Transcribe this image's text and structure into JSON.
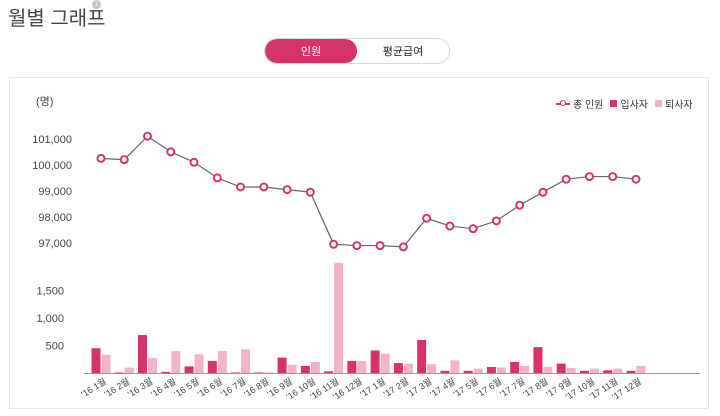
{
  "header": {
    "title": "월별 그래프",
    "info_icon": "info-icon"
  },
  "tabs": [
    {
      "label": "인원",
      "active": true
    },
    {
      "label": "평균급여",
      "active": false
    }
  ],
  "colors": {
    "accent": "#d6336c",
    "line": "#666666",
    "hire": "#d6336c",
    "leave": "#f2b3c6"
  },
  "legend": {
    "total": "총 인원",
    "hire": "입사자",
    "leave": "퇴사자"
  },
  "chart_data": {
    "type": "line+bar",
    "unit_label": "(명)",
    "categories": [
      "'16 1월",
      "'16 2월",
      "'16 3월",
      "'16 4월",
      "'16 5월",
      "'16 6월",
      "'16 7월",
      "'16 8월",
      "'16 9월",
      "'16 10월",
      "'16 11월",
      "'16 12월",
      "'17 1월",
      "'17 2월",
      "'17 3월",
      "'17 4월",
      "'17 5월",
      "'17 6월",
      "'17 7월",
      "'17 8월",
      "'17 9월",
      "'17 10월",
      "'17 11월",
      "'17 12월"
    ],
    "line": {
      "name": "총 인원",
      "ylim": [
        96500,
        101800
      ],
      "yticks": [
        97000,
        98000,
        99000,
        100000,
        101000
      ],
      "ytick_labels": [
        "97,000",
        "98,000",
        "99,000",
        "100,000",
        "101,000"
      ],
      "values": [
        100250,
        100200,
        101100,
        100500,
        100100,
        99500,
        99150,
        99150,
        99050,
        98950,
        96950,
        96900,
        96900,
        96850,
        97950,
        97650,
        97550,
        97850,
        98450,
        98950,
        99450,
        99550,
        99550,
        99450
      ]
    },
    "bars": {
      "ylim": [
        0,
        2000
      ],
      "yticks": [
        500,
        1000,
        1500
      ],
      "ytick_labels": [
        "500",
        "1,000",
        "1,500"
      ],
      "series": [
        {
          "name": "입사자",
          "values": [
            450,
            10,
            690,
            20,
            120,
            220,
            10,
            10,
            280,
            130,
            30,
            220,
            410,
            180,
            600,
            40,
            40,
            110,
            200,
            470,
            170,
            40,
            50,
            40
          ]
        },
        {
          "name": "퇴사자",
          "values": [
            330,
            100,
            270,
            400,
            340,
            400,
            430,
            10,
            150,
            200,
            2000,
            220,
            350,
            170,
            160,
            230,
            80,
            100,
            130,
            110,
            90,
            80,
            80,
            130
          ]
        }
      ]
    }
  }
}
